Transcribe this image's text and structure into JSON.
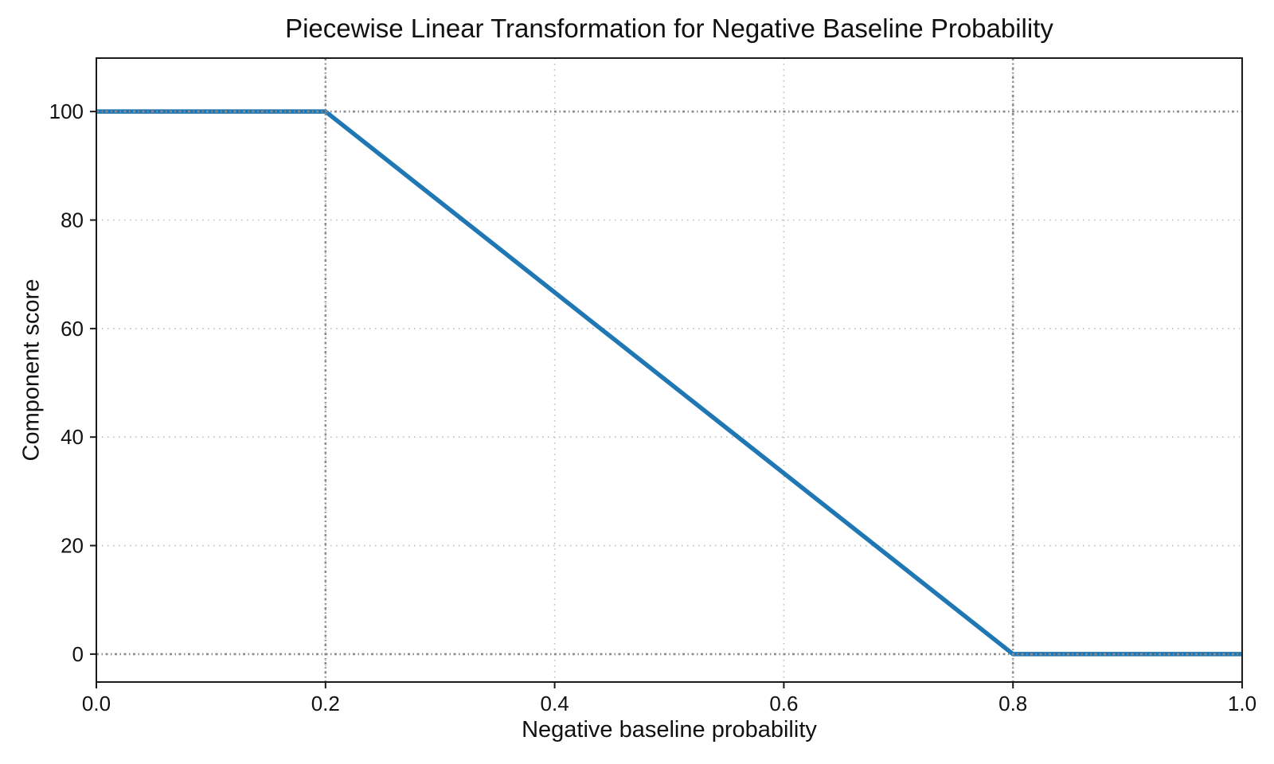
{
  "chart_data": {
    "type": "line",
    "title": "Piecewise Linear Transformation for Negative Baseline Probability",
    "xlabel": "Negative baseline probability",
    "ylabel": "Component score",
    "xlim": [
      0.0,
      1.0
    ],
    "ylim": [
      -5.15,
      109.85
    ],
    "xticks": {
      "values": [
        0.0,
        0.2,
        0.4,
        0.6,
        0.8,
        1.0
      ],
      "labels": [
        "0.0",
        "0.2",
        "0.4",
        "0.6",
        "0.8",
        "1.0"
      ]
    },
    "yticks": {
      "values": [
        0,
        20,
        40,
        60,
        80,
        100
      ],
      "labels": [
        "0",
        "20",
        "40",
        "60",
        "80",
        "100"
      ]
    },
    "series": [
      {
        "name": "component_score_curve",
        "color": "#1f77b4",
        "linewidth": 5.5,
        "points": [
          [
            0.0,
            100
          ],
          [
            0.2,
            100
          ],
          [
            0.8,
            0
          ],
          [
            1.0,
            0
          ]
        ]
      }
    ],
    "grid": {
      "show": true,
      "linestyle": "dotted",
      "color": "#bfbfbf",
      "x_values": [
        0.2,
        0.4,
        0.6,
        0.8
      ],
      "y_values": [
        20,
        40,
        60,
        80
      ]
    },
    "reference_lines": {
      "linestyle": "dashdot",
      "color": "#8c8c8c",
      "x_values": [
        0.2,
        0.8
      ],
      "y_values": [
        0,
        100
      ]
    },
    "legend": "none",
    "colors": {
      "line": "#1f77b4",
      "spine": "#1a1a1a",
      "text": "#111111",
      "background": "#ffffff"
    }
  }
}
